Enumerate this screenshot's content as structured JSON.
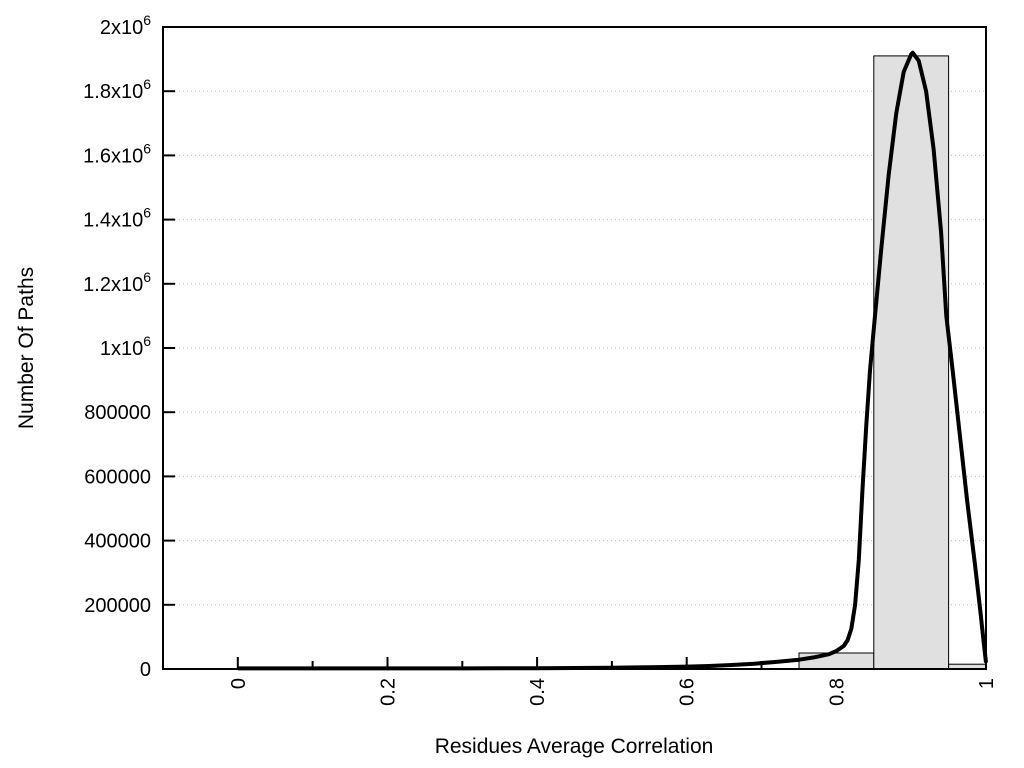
{
  "chart_data": {
    "type": "bar",
    "subtype": "histogram-with-density-curve",
    "title": "",
    "xlabel": "Residues Average Correlation",
    "ylabel": "Number Of Paths",
    "xlim": [
      -0.1,
      1.0
    ],
    "ylim": [
      0,
      2000000
    ],
    "grid": "horizontal-dotted",
    "legend": "none",
    "x_ticks": [
      {
        "v": 0.0,
        "label": "0"
      },
      {
        "v": 0.2,
        "label": "0.2"
      },
      {
        "v": 0.4,
        "label": "0.4"
      },
      {
        "v": 0.6,
        "label": "0.6"
      },
      {
        "v": 0.8,
        "label": "0.8"
      },
      {
        "v": 1.0,
        "label": "1"
      }
    ],
    "x_minor_ticks": [
      0.1,
      0.3,
      0.5,
      0.7,
      0.9
    ],
    "x_tick_label_rotation_deg": -90,
    "y_ticks": [
      {
        "v": 0,
        "label": "0"
      },
      {
        "v": 200000,
        "label": "200000"
      },
      {
        "v": 400000,
        "label": "400000"
      },
      {
        "v": 600000,
        "label": "600000"
      },
      {
        "v": 800000,
        "label": "800000"
      },
      {
        "v": 1000000,
        "label": "1x10^6"
      },
      {
        "v": 1200000,
        "label": "1.2x10^6"
      },
      {
        "v": 1400000,
        "label": "1.4x10^6"
      },
      {
        "v": 1600000,
        "label": "1.6x10^6"
      },
      {
        "v": 1800000,
        "label": "1.8x10^6"
      },
      {
        "v": 2000000,
        "label": "2x10^6"
      }
    ],
    "bars": [
      {
        "x0": 0.75,
        "x1": 0.85,
        "value": 50000
      },
      {
        "x0": 0.85,
        "x1": 0.95,
        "value": 1910000
      },
      {
        "x0": 0.95,
        "x1": 1.0,
        "value": 15000
      }
    ],
    "curve": {
      "name": "density-fit",
      "points": [
        [
          0.0,
          2000
        ],
        [
          0.05,
          2000
        ],
        [
          0.1,
          2000
        ],
        [
          0.15,
          2000
        ],
        [
          0.2,
          2000
        ],
        [
          0.25,
          2000
        ],
        [
          0.3,
          2000
        ],
        [
          0.35,
          2200
        ],
        [
          0.4,
          2500
        ],
        [
          0.45,
          3000
        ],
        [
          0.5,
          4000
        ],
        [
          0.55,
          5500
        ],
        [
          0.6,
          7500
        ],
        [
          0.63,
          9500
        ],
        [
          0.66,
          12500
        ],
        [
          0.69,
          16500
        ],
        [
          0.72,
          22000
        ],
        [
          0.75,
          29000
        ],
        [
          0.77,
          36000
        ],
        [
          0.79,
          46000
        ],
        [
          0.8,
          56000
        ],
        [
          0.81,
          72000
        ],
        [
          0.815,
          90000
        ],
        [
          0.82,
          125000
        ],
        [
          0.825,
          200000
        ],
        [
          0.83,
          340000
        ],
        [
          0.835,
          560000
        ],
        [
          0.84,
          760000
        ],
        [
          0.845,
          930000
        ],
        [
          0.85,
          1060000
        ],
        [
          0.86,
          1310000
        ],
        [
          0.87,
          1540000
        ],
        [
          0.88,
          1730000
        ],
        [
          0.89,
          1860000
        ],
        [
          0.9,
          1915000
        ],
        [
          0.902,
          1920000
        ],
        [
          0.91,
          1895000
        ],
        [
          0.92,
          1800000
        ],
        [
          0.93,
          1620000
        ],
        [
          0.94,
          1360000
        ],
        [
          0.947,
          1100000
        ],
        [
          0.955,
          940000
        ],
        [
          0.965,
          730000
        ],
        [
          0.975,
          520000
        ],
        [
          0.985,
          330000
        ],
        [
          0.992,
          190000
        ],
        [
          0.997,
          80000
        ],
        [
          1.0,
          20000
        ]
      ]
    },
    "colors": {
      "bar_fill": "#e0e0e0",
      "bar_stroke": "#000000",
      "curve": "#000000",
      "grid": "#b9b9b9",
      "frame": "#000000",
      "text": "#000000",
      "background": "#ffffff"
    }
  }
}
